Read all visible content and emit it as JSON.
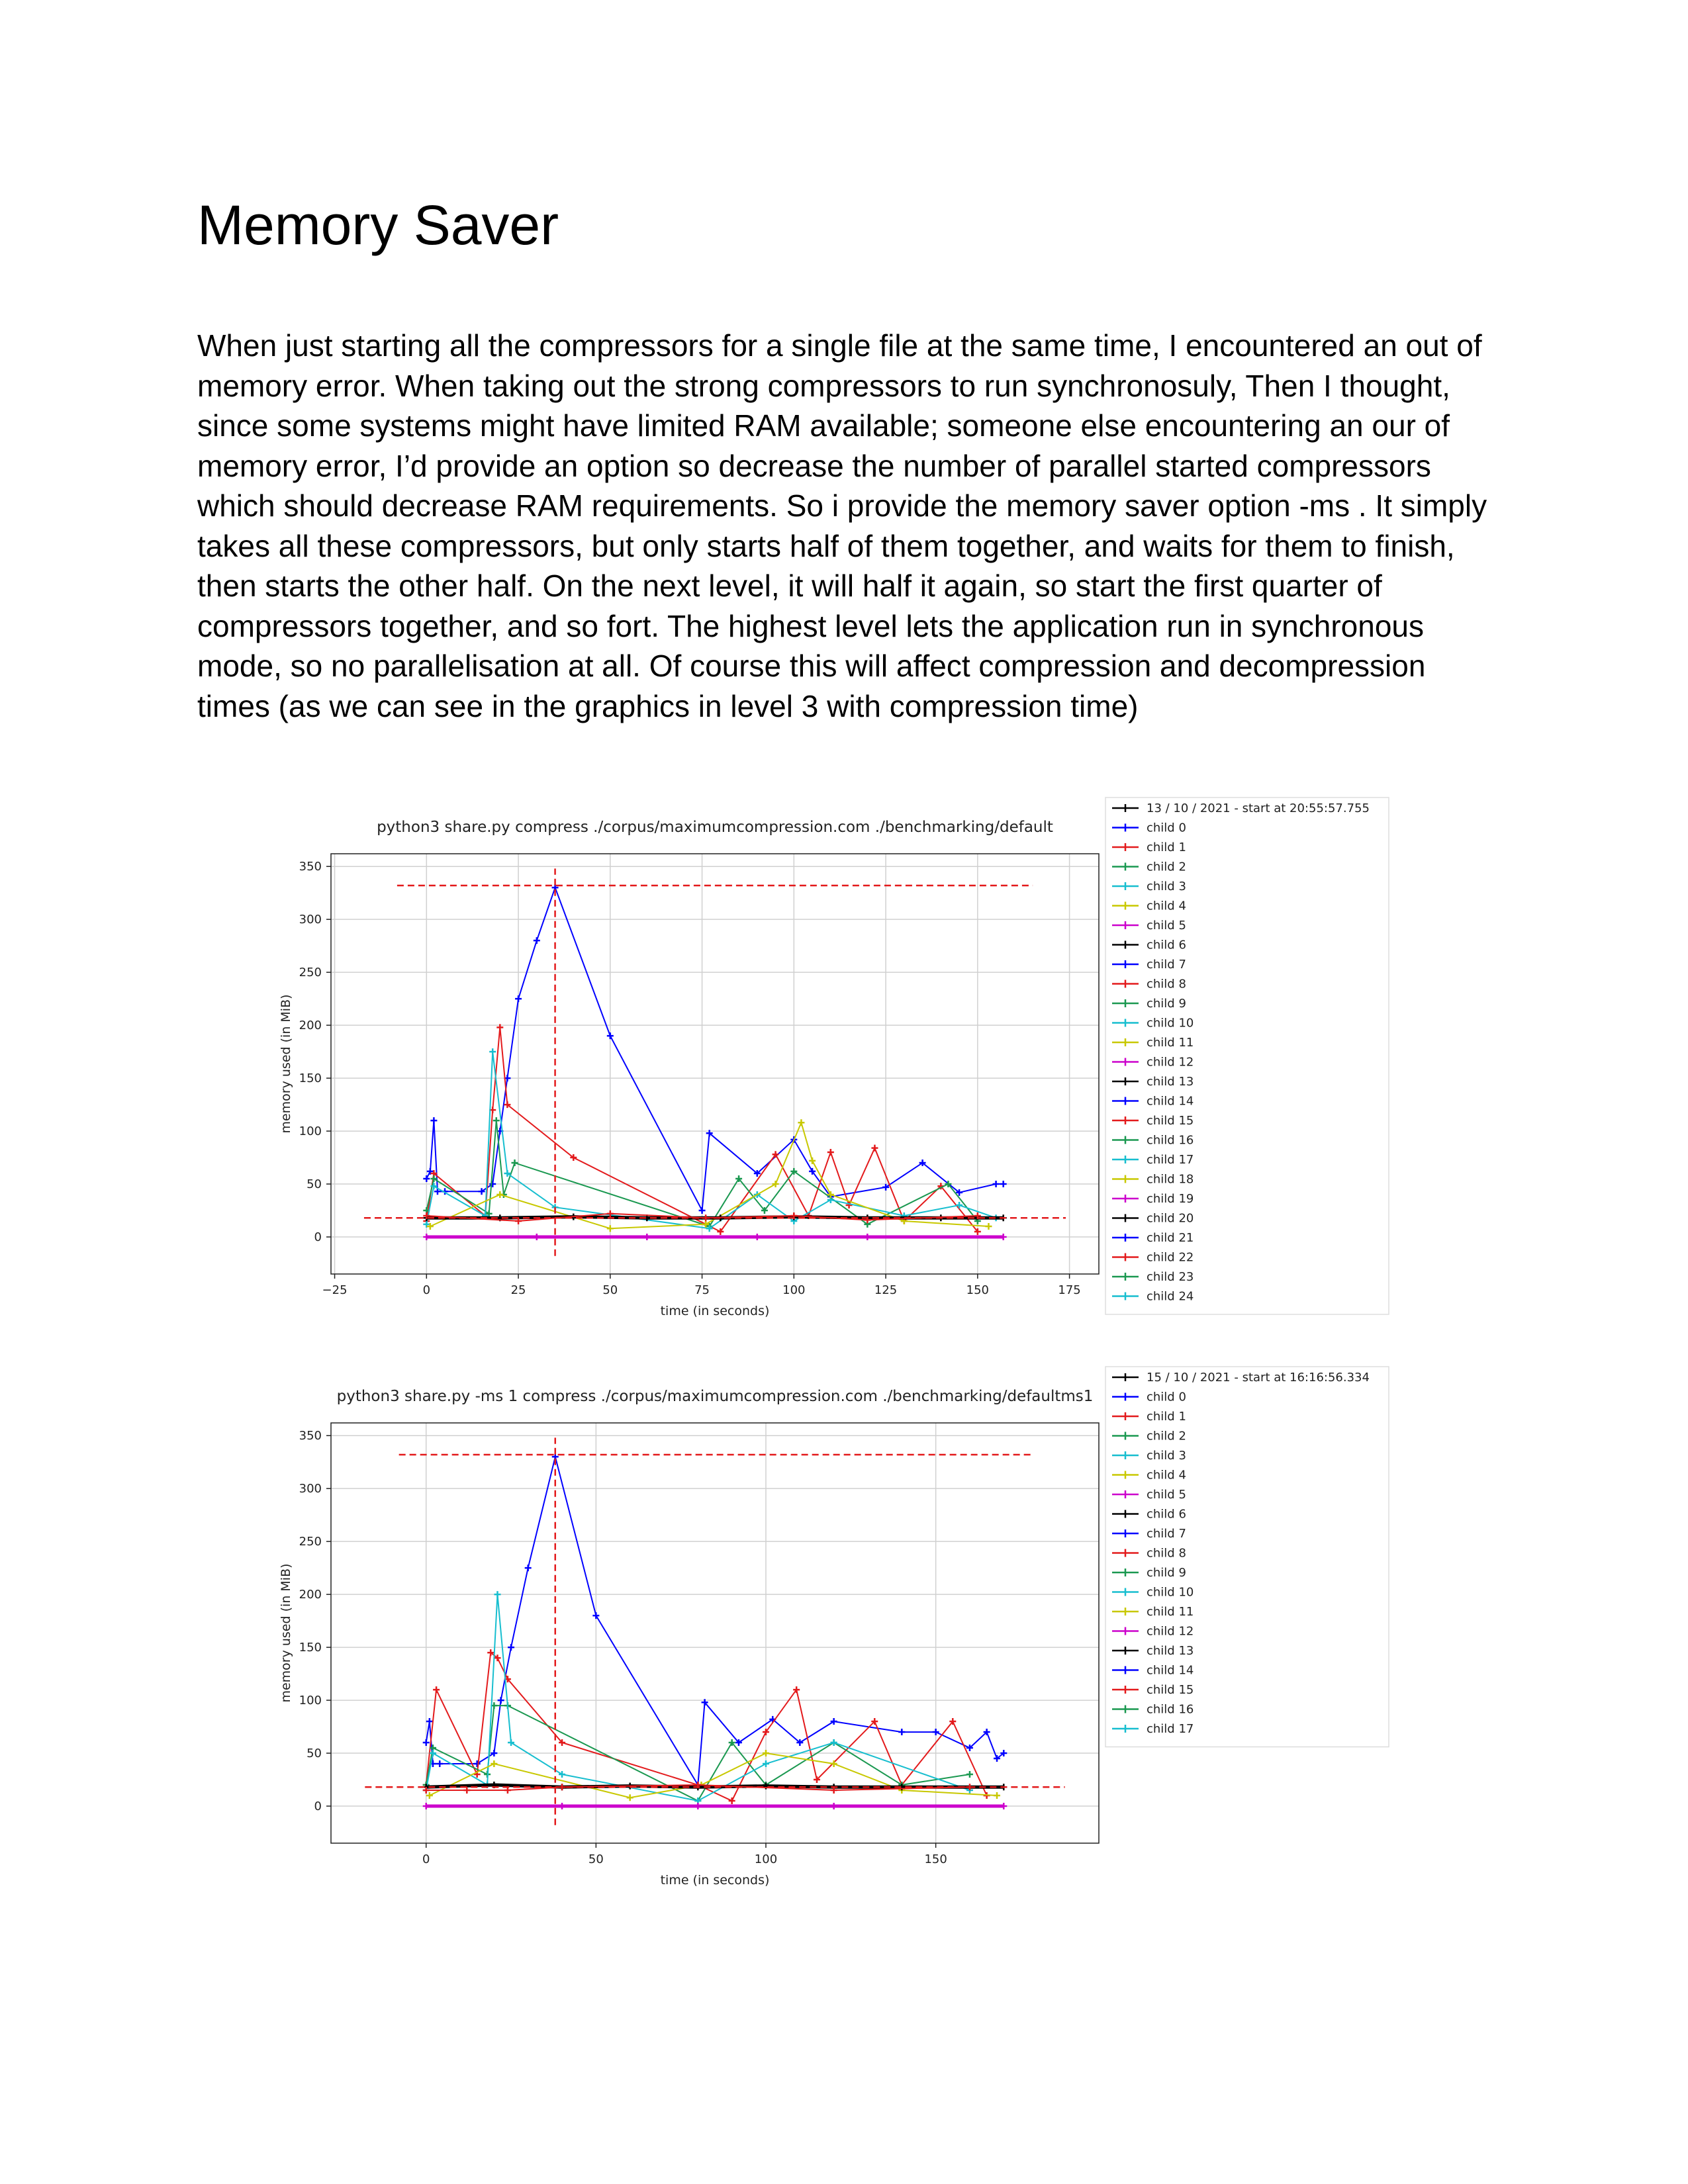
{
  "document": {
    "title": "Memory Saver",
    "paragraph": "When just starting all the compressors for a single file at the same time, I encountered an out of memory error. When taking out the strong compressors to run synchronosuly, Then I thought, since some systems might have limited RAM available; someone else encountering an our of memory error, I’d provide an option so decrease the number of parallel started compressors which should decrease RAM requirements. So i provide the memory saver option -ms . It simply takes all these compressors, but only starts half of them together, and waits for them to finish, then starts the other half. On the next level, it will half it again, so start the first quarter of compressors together, and so fort. The highest level lets the application run in synchronous mode, so no parallelisation at all. Of course this will affect compression and decompression times (as we can see in the graphics in level 3 with compression time)"
  },
  "chart_data": [
    {
      "type": "line",
      "title": "python3 share.py compress ./corpus/maximumcompression.com ./benchmarking/default",
      "xlabel": "time (in seconds)",
      "ylabel": "memory used (in MiB)",
      "xlim": [
        -26,
        183
      ],
      "ylim": [
        -35,
        362
      ],
      "xticks": [
        -25,
        0,
        25,
        50,
        75,
        100,
        125,
        150,
        175
      ],
      "yticks": [
        0,
        50,
        100,
        150,
        200,
        250,
        300,
        350
      ],
      "grid": true,
      "legend_position": "outside-right",
      "legend_title": "13 / 10 / 2021 - start at 20:55:57.755",
      "legend_entries": [
        "child 0",
        "child 1",
        "child 2",
        "child 3",
        "child 4",
        "child 5",
        "child 6",
        "child 7",
        "child 8",
        "child 9",
        "child 10",
        "child 11",
        "child 12",
        "child 13",
        "child 14",
        "child 15",
        "child 16",
        "child 17",
        "child 18",
        "child 19",
        "child 20",
        "child 21",
        "child 22",
        "child 23",
        "child 24"
      ],
      "reference_lines": [
        {
          "orientation": "horizontal",
          "y": 332,
          "x": [
            -8,
            165
          ],
          "color": "#e31a1c"
        },
        {
          "orientation": "horizontal",
          "y": 18,
          "x": [
            -17,
            174
          ],
          "color": "#e31a1c"
        },
        {
          "orientation": "vertical",
          "x": 35,
          "y": [
            -18,
            348
          ],
          "color": "#e31a1c"
        }
      ],
      "series": [
        {
          "name": "child 0",
          "color": "#0000ff",
          "x": [
            0,
            1,
            2,
            3,
            5,
            15,
            18,
            20,
            22,
            25,
            30,
            35,
            50,
            75,
            77,
            90,
            100,
            105,
            110,
            125,
            135,
            145,
            155,
            157
          ],
          "y": [
            55,
            62,
            110,
            43,
            43,
            43,
            50,
            100,
            150,
            225,
            280,
            330,
            190,
            25,
            98,
            60,
            92,
            62,
            38,
            47,
            70,
            42,
            50,
            50
          ]
        },
        {
          "name": "child 1",
          "color": "#e31a1c",
          "x": [
            0,
            2,
            16,
            18,
            20,
            22,
            40,
            76,
            80,
            95,
            104,
            110,
            115,
            122,
            130,
            140,
            150
          ],
          "y": [
            15,
            60,
            20,
            120,
            198,
            125,
            75,
            12,
            5,
            78,
            20,
            80,
            30,
            84,
            15,
            48,
            5
          ]
        },
        {
          "name": "child 2",
          "color": "#1a9850",
          "x": [
            0,
            2,
            17,
            19,
            21,
            24,
            77,
            85,
            92,
            100,
            120,
            142,
            150
          ],
          "y": [
            25,
            55,
            22,
            110,
            40,
            70,
            10,
            55,
            25,
            62,
            12,
            50,
            15
          ]
        },
        {
          "name": "child 3",
          "color": "#17becf",
          "x": [
            0,
            2,
            16,
            18,
            22,
            35,
            77,
            90,
            100,
            110,
            130,
            145,
            155
          ],
          "y": [
            12,
            48,
            20,
            175,
            60,
            28,
            8,
            40,
            15,
            35,
            20,
            30,
            18
          ]
        },
        {
          "name": "child 4",
          "color": "#c8c800",
          "x": [
            1,
            20,
            50,
            76,
            95,
            102,
            105,
            110,
            130,
            153
          ],
          "y": [
            10,
            40,
            8,
            12,
            50,
            108,
            72,
            40,
            15,
            10
          ]
        },
        {
          "name": "child 5",
          "color": "#cc00cc",
          "x": [
            0,
            30,
            60,
            90,
            120,
            157
          ],
          "y": [
            0,
            0,
            0,
            0,
            0,
            0
          ]
        },
        {
          "name": "child 6",
          "color": "#000000",
          "x": [
            0,
            20,
            40,
            60,
            80,
            100,
            120,
            140,
            157
          ],
          "y": [
            18,
            18,
            19,
            18,
            18,
            19,
            18,
            18,
            18
          ]
        },
        {
          "name": "child 8",
          "color": "#e31a1c",
          "x": [
            0,
            25,
            50,
            76,
            100,
            120,
            150
          ],
          "y": [
            20,
            15,
            22,
            18,
            20,
            16,
            20
          ]
        }
      ]
    },
    {
      "type": "line",
      "title": "python3 share.py -ms 1 compress ./corpus/maximumcompression.com ./benchmarking/defaultms1",
      "xlabel": "time (in seconds)",
      "ylabel": "memory used (in MiB)",
      "xlim": [
        -28,
        198
      ],
      "ylim": [
        -35,
        362
      ],
      "xticks": [
        0,
        50,
        100,
        150
      ],
      "yticks": [
        0,
        50,
        100,
        150,
        200,
        250,
        300,
        350
      ],
      "grid": true,
      "legend_position": "outside-right",
      "legend_title": "15 / 10 / 2021 - start at 16:16:56.334",
      "legend_entries": [
        "child 0",
        "child 1",
        "child 2",
        "child 3",
        "child 4",
        "child 5",
        "child 6",
        "child 7",
        "child 8",
        "child 9",
        "child 10",
        "child 11",
        "child 12",
        "child 13",
        "child 14",
        "child 15",
        "child 16",
        "child 17"
      ],
      "reference_lines": [
        {
          "orientation": "horizontal",
          "y": 332,
          "x": [
            -8,
            178
          ],
          "color": "#e31a1c"
        },
        {
          "orientation": "horizontal",
          "y": 18,
          "x": [
            -18,
            188
          ],
          "color": "#e31a1c"
        },
        {
          "orientation": "vertical",
          "x": 38,
          "y": [
            -18,
            348
          ],
          "color": "#e31a1c"
        }
      ],
      "series": [
        {
          "name": "child 0",
          "color": "#0000ff",
          "x": [
            0,
            1,
            2,
            4,
            15,
            20,
            22,
            25,
            30,
            38,
            50,
            80,
            82,
            92,
            102,
            110,
            120,
            140,
            150,
            160,
            165,
            168,
            170
          ],
          "y": [
            60,
            80,
            40,
            40,
            40,
            50,
            100,
            150,
            225,
            330,
            180,
            20,
            98,
            60,
            82,
            60,
            80,
            70,
            70,
            55,
            70,
            45,
            50
          ]
        },
        {
          "name": "child 1",
          "color": "#e31a1c",
          "x": [
            0,
            3,
            15,
            19,
            21,
            24,
            40,
            80,
            90,
            100,
            109,
            115,
            132,
            140,
            155,
            165
          ],
          "y": [
            20,
            110,
            30,
            145,
            140,
            120,
            60,
            20,
            5,
            70,
            110,
            25,
            80,
            20,
            80,
            10
          ]
        },
        {
          "name": "child 2",
          "color": "#1a9850",
          "x": [
            0,
            2,
            18,
            20,
            24,
            80,
            90,
            100,
            120,
            140,
            160
          ],
          "y": [
            20,
            55,
            30,
            95,
            95,
            5,
            60,
            20,
            60,
            20,
            30
          ]
        },
        {
          "name": "child 3",
          "color": "#17becf",
          "x": [
            0,
            2,
            18,
            21,
            25,
            40,
            80,
            100,
            120,
            160
          ],
          "y": [
            15,
            50,
            20,
            200,
            60,
            30,
            5,
            40,
            60,
            15
          ]
        },
        {
          "name": "child 4",
          "color": "#c8c800",
          "x": [
            1,
            20,
            60,
            81,
            100,
            120,
            140,
            168
          ],
          "y": [
            10,
            40,
            8,
            20,
            50,
            40,
            15,
            10
          ]
        },
        {
          "name": "child 5",
          "color": "#cc00cc",
          "x": [
            0,
            40,
            80,
            120,
            170
          ],
          "y": [
            0,
            0,
            0,
            0,
            0
          ]
        },
        {
          "name": "child 6",
          "color": "#000000",
          "x": [
            0,
            20,
            40,
            60,
            80,
            100,
            120,
            140,
            170
          ],
          "y": [
            18,
            20,
            18,
            19,
            18,
            19,
            18,
            18,
            18
          ]
        },
        {
          "name": "child 8",
          "color": "#e31a1c",
          "x": [
            0,
            12,
            24,
            40,
            80,
            120,
            160
          ],
          "y": [
            15,
            15,
            15,
            18,
            20,
            15,
            18
          ]
        }
      ]
    }
  ]
}
